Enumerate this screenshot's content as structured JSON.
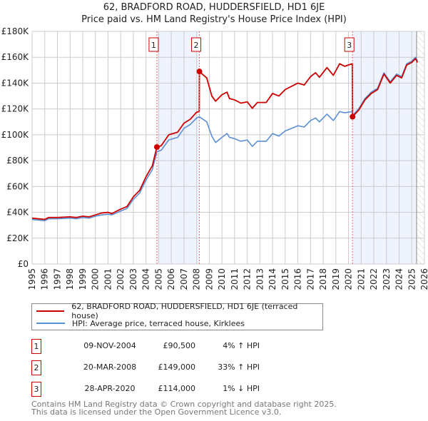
{
  "chart_data": {
    "type": "line",
    "title": "62, BRADFORD ROAD, HUDDERSFIELD, HD1 6JE",
    "subtitle": "Price paid vs. HM Land Registry's House Price Index (HPI)",
    "xlim": [
      1995,
      2026
    ],
    "ylim": [
      0,
      180000
    ],
    "y_ticks": [
      0,
      20000,
      40000,
      60000,
      80000,
      100000,
      120000,
      140000,
      160000,
      180000
    ],
    "y_tick_labels": [
      "£0",
      "£20K",
      "£40K",
      "£60K",
      "£80K",
      "£100K",
      "£120K",
      "£140K",
      "£160K",
      "£180K"
    ],
    "x_ticks": [
      "1995",
      "1996",
      "1997",
      "1998",
      "1999",
      "2000",
      "2001",
      "2002",
      "2003",
      "2004",
      "2005",
      "2006",
      "2007",
      "2008",
      "2009",
      "2010",
      "2011",
      "2012",
      "2013",
      "2014",
      "2015",
      "2016",
      "2017",
      "2018",
      "2019",
      "2020",
      "2021",
      "2022",
      "2023",
      "2024",
      "2025",
      "2026"
    ],
    "grid": true,
    "legend_placement": "below",
    "series": [
      {
        "name": "62, BRADFORD ROAD, HUDDERSFIELD, HD1 6JE (terraced house)",
        "color": "#cc0000",
        "points": [
          [
            1995.0,
            35.5
          ],
          [
            1996.0,
            34.5
          ],
          [
            1996.3,
            36
          ],
          [
            1997.0,
            36
          ],
          [
            1998.0,
            36.5
          ],
          [
            1998.5,
            36
          ],
          [
            1999.0,
            37
          ],
          [
            1999.5,
            36.5
          ],
          [
            2000.0,
            38
          ],
          [
            2000.5,
            39.5
          ],
          [
            2001.0,
            40
          ],
          [
            2001.3,
            39
          ],
          [
            2002.0,
            42.5
          ],
          [
            2002.5,
            44.5
          ],
          [
            2003.0,
            52
          ],
          [
            2003.5,
            57
          ],
          [
            2004.0,
            67.5
          ],
          [
            2004.5,
            76
          ],
          [
            2004.86,
            90.5
          ],
          [
            2005.2,
            91.5
          ],
          [
            2005.8,
            100
          ],
          [
            2006.5,
            102
          ],
          [
            2007.0,
            109
          ],
          [
            2007.5,
            112
          ],
          [
            2008.0,
            117.5
          ],
          [
            2008.21,
            118
          ],
          [
            2008.22,
            149
          ],
          [
            2008.5,
            146.5
          ],
          [
            2008.8,
            144
          ],
          [
            2009.2,
            130
          ],
          [
            2009.5,
            126
          ],
          [
            2010.0,
            131
          ],
          [
            2010.4,
            133
          ],
          [
            2010.6,
            128
          ],
          [
            2011.0,
            127
          ],
          [
            2011.5,
            124.5
          ],
          [
            2012.0,
            125.5
          ],
          [
            2012.4,
            120.5
          ],
          [
            2012.8,
            125
          ],
          [
            2013.5,
            125
          ],
          [
            2014.0,
            132
          ],
          [
            2014.5,
            130
          ],
          [
            2015.0,
            135
          ],
          [
            2015.5,
            137.5
          ],
          [
            2016.0,
            140
          ],
          [
            2016.5,
            138.5
          ],
          [
            2017.0,
            145
          ],
          [
            2017.4,
            148
          ],
          [
            2017.7,
            144.5
          ],
          [
            2018.3,
            152
          ],
          [
            2018.8,
            146
          ],
          [
            2019.3,
            155
          ],
          [
            2019.7,
            153
          ],
          [
            2020.3,
            155
          ],
          [
            2020.32,
            114
          ],
          [
            2020.8,
            119
          ],
          [
            2021.3,
            127
          ],
          [
            2021.8,
            132
          ],
          [
            2022.3,
            135
          ],
          [
            2022.8,
            147
          ],
          [
            2023.3,
            140
          ],
          [
            2023.8,
            146
          ],
          [
            2024.2,
            144
          ],
          [
            2024.6,
            154
          ],
          [
            2025.0,
            156
          ],
          [
            2025.3,
            159
          ],
          [
            2025.45,
            156
          ]
        ]
      },
      {
        "name": "HPI: Average price, terraced house, Kirklees",
        "color": "#5b8fd4",
        "points": [
          [
            1995.0,
            34.5
          ],
          [
            1996.0,
            33.5
          ],
          [
            1996.3,
            35
          ],
          [
            1997.0,
            35
          ],
          [
            1998.0,
            35.5
          ],
          [
            1998.5,
            35
          ],
          [
            1999.0,
            36
          ],
          [
            1999.5,
            35.5
          ],
          [
            2000.0,
            37
          ],
          [
            2000.5,
            38
          ],
          [
            2001.0,
            38.5
          ],
          [
            2001.3,
            38
          ],
          [
            2002.0,
            41
          ],
          [
            2002.5,
            43
          ],
          [
            2003.0,
            50
          ],
          [
            2003.5,
            55
          ],
          [
            2004.0,
            65
          ],
          [
            2004.5,
            73
          ],
          [
            2004.86,
            87
          ],
          [
            2005.2,
            88
          ],
          [
            2005.8,
            96
          ],
          [
            2006.5,
            98
          ],
          [
            2007.0,
            105
          ],
          [
            2007.5,
            108
          ],
          [
            2008.0,
            113
          ],
          [
            2008.21,
            114
          ],
          [
            2008.5,
            112
          ],
          [
            2008.8,
            110
          ],
          [
            2009.2,
            99
          ],
          [
            2009.5,
            94
          ],
          [
            2010.0,
            98
          ],
          [
            2010.4,
            101
          ],
          [
            2010.6,
            98
          ],
          [
            2011.0,
            97
          ],
          [
            2011.5,
            95
          ],
          [
            2012.0,
            96
          ],
          [
            2012.4,
            91
          ],
          [
            2012.8,
            95
          ],
          [
            2013.5,
            95
          ],
          [
            2014.0,
            101
          ],
          [
            2014.5,
            99
          ],
          [
            2015.0,
            103
          ],
          [
            2015.5,
            105
          ],
          [
            2016.0,
            107
          ],
          [
            2016.5,
            106
          ],
          [
            2017.0,
            111
          ],
          [
            2017.4,
            113
          ],
          [
            2017.7,
            110
          ],
          [
            2018.3,
            116
          ],
          [
            2018.8,
            111
          ],
          [
            2019.3,
            118
          ],
          [
            2019.7,
            117
          ],
          [
            2020.3,
            118
          ],
          [
            2020.32,
            115
          ],
          [
            2020.8,
            120
          ],
          [
            2021.3,
            128
          ],
          [
            2021.8,
            133
          ],
          [
            2022.3,
            136
          ],
          [
            2022.8,
            148
          ],
          [
            2023.3,
            141
          ],
          [
            2023.8,
            147
          ],
          [
            2024.2,
            145
          ],
          [
            2024.6,
            155
          ],
          [
            2025.0,
            157
          ],
          [
            2025.3,
            160
          ],
          [
            2025.45,
            157
          ]
        ]
      }
    ],
    "y_units_in_points": "thousands GBP",
    "sales": [
      {
        "label": "1",
        "x": 2004.86,
        "y": 90.5
      },
      {
        "label": "2",
        "x": 2008.22,
        "y": 149
      },
      {
        "label": "3",
        "x": 2020.32,
        "y": 114
      }
    ],
    "shaded_ranges": [
      [
        2004.86,
        2008.22
      ],
      [
        2020.32,
        2025.38
      ]
    ],
    "hatched_from": 2025.38
  },
  "legend": [
    {
      "label": "62, BRADFORD ROAD, HUDDERSFIELD, HD1 6JE (terraced house)",
      "color": "#cc0000"
    },
    {
      "label": "HPI: Average price, terraced house, Kirklees",
      "color": "#5b8fd4"
    }
  ],
  "transactions": [
    {
      "num": "1",
      "date": "09-NOV-2004",
      "price": "£90,500",
      "hpi": "4% ↑ HPI"
    },
    {
      "num": "2",
      "date": "20-MAR-2008",
      "price": "£149,000",
      "hpi": "33% ↑ HPI"
    },
    {
      "num": "3",
      "date": "28-APR-2020",
      "price": "£114,000",
      "hpi": "1% ↓ HPI"
    }
  ],
  "footer": {
    "line1": "Contains HM Land Registry data © Crown copyright and database right 2025.",
    "line2": "This data is licensed under the Open Government Licence v3.0."
  }
}
